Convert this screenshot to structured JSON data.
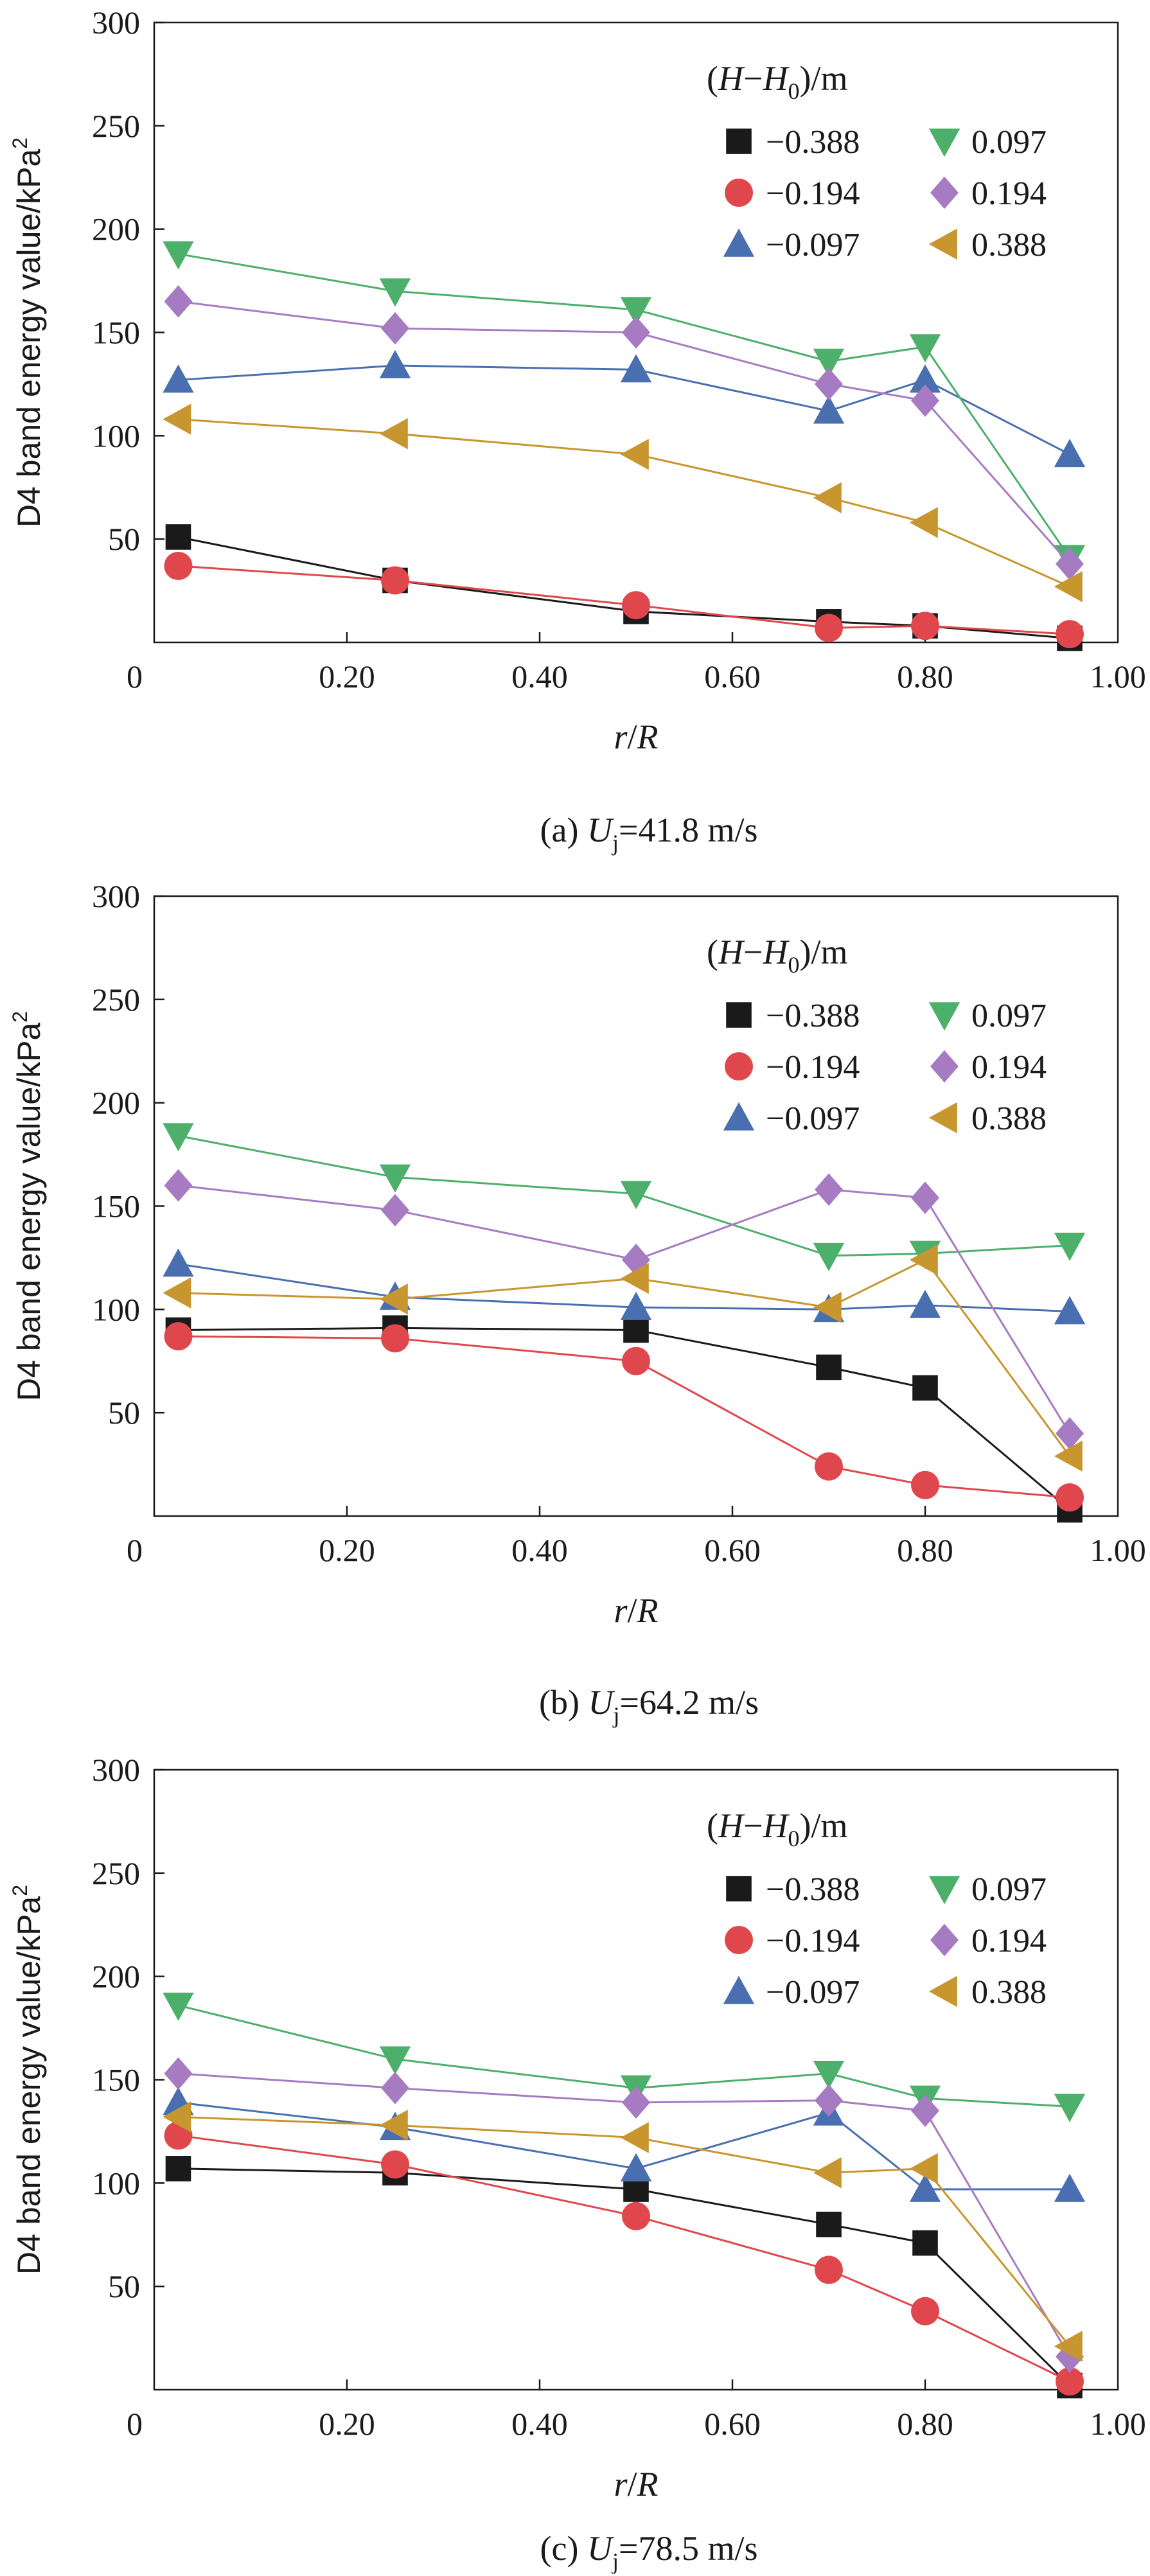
{
  "chart_data": [
    {
      "type": "line",
      "caption": {
        "prefix": "(a) ",
        "var": "U",
        "sub": "j",
        "suffix": "=41.8 m/s"
      },
      "xlabel": {
        "var1": "r",
        "slash": "/",
        "var2": "R"
      },
      "ylabel": {
        "text": "D4 band energy value/kPa",
        "sup": "2"
      },
      "xlim": [
        0,
        1.0
      ],
      "ylim": [
        0,
        300
      ],
      "xticks": [
        {
          "v": 0,
          "label": "0"
        },
        {
          "v": 0.2,
          "label": "0.20"
        },
        {
          "v": 0.4,
          "label": "0.40"
        },
        {
          "v": 0.6,
          "label": "0.60"
        },
        {
          "v": 0.8,
          "label": "0.80"
        },
        {
          "v": 1.0,
          "label": "1.00"
        }
      ],
      "yticks": [
        {
          "v": 50,
          "label": "50"
        },
        {
          "v": 100,
          "label": "100"
        },
        {
          "v": 150,
          "label": "150"
        },
        {
          "v": 200,
          "label": "200"
        },
        {
          "v": 250,
          "label": "250"
        },
        {
          "v": 300,
          "label": "300"
        }
      ],
      "legend": {
        "title": {
          "open": "(",
          "a": "H",
          "dash": "−",
          "b": "H",
          "sub": "0",
          "close": ")/m"
        },
        "placement": "top-right"
      },
      "x": [
        0.025,
        0.25,
        0.5,
        0.7,
        0.8,
        0.95
      ],
      "series": [
        {
          "name": "−0.388",
          "color": "#1a1a1a",
          "marker": "square",
          "values": [
            51,
            30,
            15,
            10,
            8,
            2
          ]
        },
        {
          "name": "−0.194",
          "color": "#e0474c",
          "marker": "circle",
          "values": [
            37,
            30,
            18,
            7,
            8,
            4
          ]
        },
        {
          "name": "−0.097",
          "color": "#4a6fb0",
          "marker": "triangle-up",
          "values": [
            127,
            134,
            132,
            112,
            127,
            91
          ]
        },
        {
          "name": "0.097",
          "color": "#4caf6a",
          "marker": "triangle-down",
          "values": [
            188,
            170,
            161,
            136,
            143,
            41
          ]
        },
        {
          "name": "0.194",
          "color": "#a77bc2",
          "marker": "diamond",
          "values": [
            165,
            152,
            150,
            125,
            117,
            38
          ]
        },
        {
          "name": "0.388",
          "color": "#c8962e",
          "marker": "triangle-left",
          "values": [
            108,
            101,
            91,
            70,
            58,
            27
          ]
        }
      ]
    },
    {
      "type": "line",
      "caption": {
        "prefix": "(b) ",
        "var": "U",
        "sub": "j",
        "suffix": "=64.2 m/s"
      },
      "xlabel": {
        "var1": "r",
        "slash": "/",
        "var2": "R"
      },
      "ylabel": {
        "text": "D4 band energy value/kPa",
        "sup": "2"
      },
      "xlim": [
        0,
        1.0
      ],
      "ylim": [
        0,
        300
      ],
      "xticks": [
        {
          "v": 0,
          "label": "0"
        },
        {
          "v": 0.2,
          "label": "0.20"
        },
        {
          "v": 0.4,
          "label": "0.40"
        },
        {
          "v": 0.6,
          "label": "0.60"
        },
        {
          "v": 0.8,
          "label": "0.80"
        },
        {
          "v": 1.0,
          "label": "1.00"
        }
      ],
      "yticks": [
        {
          "v": 50,
          "label": "50"
        },
        {
          "v": 100,
          "label": "100"
        },
        {
          "v": 150,
          "label": "150"
        },
        {
          "v": 200,
          "label": "200"
        },
        {
          "v": 250,
          "label": "250"
        },
        {
          "v": 300,
          "label": "300"
        }
      ],
      "legend": {
        "title": {
          "open": "(",
          "a": "H",
          "dash": "−",
          "b": "H",
          "sub": "0",
          "close": ")/m"
        },
        "placement": "top-right"
      },
      "x": [
        0.025,
        0.25,
        0.5,
        0.7,
        0.8,
        0.95
      ],
      "series": [
        {
          "name": "−0.388",
          "color": "#1a1a1a",
          "marker": "square",
          "values": [
            90,
            91,
            90,
            72,
            62,
            3
          ]
        },
        {
          "name": "−0.194",
          "color": "#e0474c",
          "marker": "circle",
          "values": [
            87,
            86,
            75,
            24,
            15,
            9
          ]
        },
        {
          "name": "−0.097",
          "color": "#4a6fb0",
          "marker": "triangle-up",
          "values": [
            122,
            106,
            101,
            100,
            102,
            99
          ]
        },
        {
          "name": "0.097",
          "color": "#4caf6a",
          "marker": "triangle-down",
          "values": [
            184,
            164,
            156,
            126,
            127,
            131
          ]
        },
        {
          "name": "0.194",
          "color": "#a77bc2",
          "marker": "diamond",
          "values": [
            160,
            148,
            124,
            158,
            154,
            40
          ]
        },
        {
          "name": "0.388",
          "color": "#c8962e",
          "marker": "triangle-left",
          "values": [
            108,
            105,
            115,
            101,
            124,
            29
          ]
        }
      ]
    },
    {
      "type": "line",
      "caption": {
        "prefix": "(c) ",
        "var": "U",
        "sub": "j",
        "suffix": "=78.5 m/s"
      },
      "xlabel": {
        "var1": "r",
        "slash": "/",
        "var2": "R"
      },
      "ylabel": {
        "text": "D4 band energy value/kPa",
        "sup": "2"
      },
      "xlim": [
        0,
        1.0
      ],
      "ylim": [
        0,
        300
      ],
      "xticks": [
        {
          "v": 0,
          "label": "0"
        },
        {
          "v": 0.2,
          "label": "0.20"
        },
        {
          "v": 0.4,
          "label": "0.40"
        },
        {
          "v": 0.6,
          "label": "0.60"
        },
        {
          "v": 0.8,
          "label": "0.80"
        },
        {
          "v": 1.0,
          "label": "1.00"
        }
      ],
      "yticks": [
        {
          "v": 50,
          "label": "50"
        },
        {
          "v": 100,
          "label": "100"
        },
        {
          "v": 150,
          "label": "150"
        },
        {
          "v": 200,
          "label": "200"
        },
        {
          "v": 250,
          "label": "250"
        },
        {
          "v": 300,
          "label": "300"
        }
      ],
      "legend": {
        "title": {
          "open": "(",
          "a": "H",
          "dash": "−",
          "b": "H",
          "sub": "0",
          "close": ")/m"
        },
        "placement": "top-right"
      },
      "x": [
        0.025,
        0.25,
        0.5,
        0.7,
        0.8,
        0.95
      ],
      "series": [
        {
          "name": "−0.388",
          "color": "#1a1a1a",
          "marker": "square",
          "values": [
            107,
            105,
            97,
            80,
            71,
            2
          ]
        },
        {
          "name": "−0.194",
          "color": "#e0474c",
          "marker": "circle",
          "values": [
            123,
            109,
            84,
            58,
            38,
            4
          ]
        },
        {
          "name": "−0.097",
          "color": "#4a6fb0",
          "marker": "triangle-up",
          "values": [
            139,
            127,
            107,
            134,
            97,
            97
          ]
        },
        {
          "name": "0.097",
          "color": "#4caf6a",
          "marker": "triangle-down",
          "values": [
            186,
            160,
            146,
            153,
            141,
            137
          ]
        },
        {
          "name": "0.194",
          "color": "#a77bc2",
          "marker": "diamond",
          "values": [
            153,
            146,
            139,
            140,
            135,
            16
          ]
        },
        {
          "name": "0.388",
          "color": "#c8962e",
          "marker": "triangle-left",
          "values": [
            132,
            128,
            122,
            105,
            107,
            21
          ]
        }
      ]
    }
  ]
}
